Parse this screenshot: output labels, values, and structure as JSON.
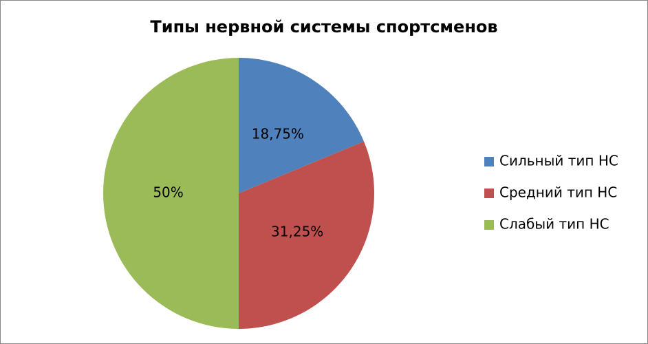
{
  "chart_data": {
    "type": "pie",
    "title": "Типы нервной системы спортсменов",
    "categories": [
      "Сильный тип НС",
      "Средний тип НС",
      "Слабый тип НС"
    ],
    "values": [
      18.75,
      31.25,
      50
    ],
    "value_labels": [
      "18,75%",
      "31,25%",
      "50%"
    ],
    "colors": [
      "#4f81bd",
      "#c0504d",
      "#9bbb59"
    ],
    "legend": "right"
  }
}
